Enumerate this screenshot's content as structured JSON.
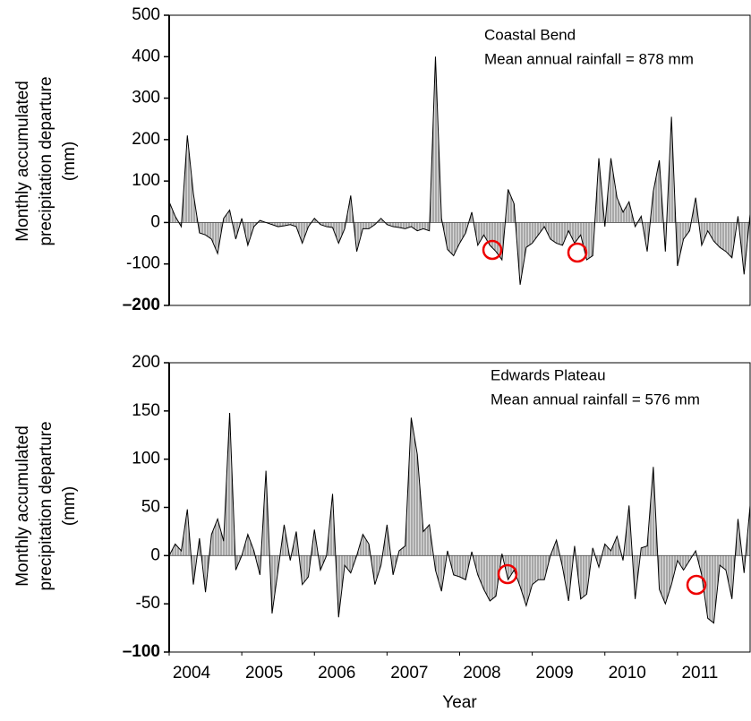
{
  "chart_data": [
    {
      "type": "area",
      "ylabel": [
        "Monthly accumulated",
        "precipitation departure",
        "(mm)"
      ],
      "annotations": [
        "Coastal Bend",
        "Mean annual rainfall = 878 mm"
      ],
      "xlim": [
        2004,
        2012
      ],
      "ylim": [
        -200,
        500
      ],
      "yticks": [
        {
          "value": -200,
          "label": "–200"
        },
        -100,
        0,
        100,
        200,
        300,
        400,
        500
      ],
      "color": "#000000",
      "x": [
        2004.0,
        2004.083,
        2004.167,
        2004.25,
        2004.333,
        2004.417,
        2004.5,
        2004.583,
        2004.667,
        2004.75,
        2004.833,
        2004.917,
        2005.0,
        2005.083,
        2005.167,
        2005.25,
        2005.333,
        2005.417,
        2005.5,
        2005.583,
        2005.667,
        2005.75,
        2005.833,
        2005.917,
        2006.0,
        2006.083,
        2006.167,
        2006.25,
        2006.333,
        2006.417,
        2006.5,
        2006.583,
        2006.667,
        2006.75,
        2006.833,
        2006.917,
        2007.0,
        2007.083,
        2007.167,
        2007.25,
        2007.333,
        2007.417,
        2007.5,
        2007.583,
        2007.667,
        2007.75,
        2007.833,
        2007.917,
        2008.0,
        2008.083,
        2008.167,
        2008.25,
        2008.333,
        2008.417,
        2008.5,
        2008.583,
        2008.667,
        2008.75,
        2008.833,
        2008.917,
        2009.0,
        2009.083,
        2009.167,
        2009.25,
        2009.333,
        2009.417,
        2009.5,
        2009.583,
        2009.667,
        2009.75,
        2009.833,
        2009.917,
        2010.0,
        2010.083,
        2010.167,
        2010.25,
        2010.333,
        2010.417,
        2010.5,
        2010.583,
        2010.667,
        2010.75,
        2010.833,
        2010.917,
        2011.0,
        2011.083,
        2011.167,
        2011.25,
        2011.333,
        2011.417,
        2011.5,
        2011.583,
        2011.667,
        2011.75,
        2011.833,
        2011.917,
        2012.0
      ],
      "values": [
        50,
        15,
        -10,
        210,
        70,
        -25,
        -30,
        -40,
        -75,
        10,
        30,
        -40,
        10,
        -55,
        -10,
        5,
        0,
        -5,
        -10,
        -8,
        -5,
        -10,
        -50,
        -10,
        10,
        -5,
        -10,
        -12,
        -50,
        -15,
        65,
        -70,
        -15,
        -15,
        -5,
        10,
        -5,
        -10,
        -12,
        -15,
        -10,
        -20,
        -15,
        -20,
        400,
        10,
        -65,
        -80,
        -50,
        -25,
        25,
        -55,
        -30,
        -55,
        -70,
        -90,
        80,
        45,
        -150,
        -60,
        -50,
        -30,
        -10,
        -40,
        -50,
        -55,
        -20,
        -50,
        -30,
        -90,
        -80,
        155,
        -10,
        155,
        60,
        25,
        50,
        -10,
        15,
        -70,
        75,
        150,
        -70,
        255,
        -105,
        -40,
        -20,
        60,
        -55,
        -20,
        -45,
        -60,
        -70,
        -85,
        15,
        -125,
        20
      ]
    },
    {
      "type": "area",
      "ylabel": [
        "Monthly accumulated",
        "precipitation departure",
        "(mm)"
      ],
      "annotations": [
        "Edwards Plateau",
        "Mean annual rainfall = 576 mm"
      ],
      "xlabel": "Year",
      "xlim": [
        2004,
        2012
      ],
      "ylim": [
        -100,
        200
      ],
      "yticks": [
        {
          "value": -100,
          "label": "–100"
        },
        -50,
        0,
        50,
        100,
        150,
        200
      ],
      "xticks": [
        2004,
        2005,
        2006,
        2007,
        2008,
        2009,
        2010,
        2011
      ],
      "color": "#000000",
      "x": [
        2004.0,
        2004.083,
        2004.167,
        2004.25,
        2004.333,
        2004.417,
        2004.5,
        2004.583,
        2004.667,
        2004.75,
        2004.833,
        2004.917,
        2005.0,
        2005.083,
        2005.167,
        2005.25,
        2005.333,
        2005.417,
        2005.5,
        2005.583,
        2005.667,
        2005.75,
        2005.833,
        2005.917,
        2006.0,
        2006.083,
        2006.167,
        2006.25,
        2006.333,
        2006.417,
        2006.5,
        2006.583,
        2006.667,
        2006.75,
        2006.833,
        2006.917,
        2007.0,
        2007.083,
        2007.167,
        2007.25,
        2007.333,
        2007.417,
        2007.5,
        2007.583,
        2007.667,
        2007.75,
        2007.833,
        2007.917,
        2008.0,
        2008.083,
        2008.167,
        2008.25,
        2008.333,
        2008.417,
        2008.5,
        2008.583,
        2008.667,
        2008.75,
        2008.833,
        2008.917,
        2009.0,
        2009.083,
        2009.167,
        2009.25,
        2009.333,
        2009.417,
        2009.5,
        2009.583,
        2009.667,
        2009.75,
        2009.833,
        2009.917,
        2010.0,
        2010.083,
        2010.167,
        2010.25,
        2010.333,
        2010.417,
        2010.5,
        2010.583,
        2010.667,
        2010.75,
        2010.833,
        2010.917,
        2011.0,
        2011.083,
        2011.167,
        2011.25,
        2011.333,
        2011.417,
        2011.5,
        2011.583,
        2011.667,
        2011.75,
        2011.833,
        2011.917,
        2012.0
      ],
      "values": [
        0,
        12,
        5,
        48,
        -30,
        18,
        -38,
        22,
        38,
        15,
        148,
        -15,
        0,
        22,
        5,
        -20,
        88,
        -60,
        -15,
        32,
        -5,
        25,
        -30,
        -22,
        27,
        -15,
        0,
        64,
        -64,
        -10,
        -18,
        0,
        22,
        12,
        -30,
        -10,
        32,
        -20,
        5,
        10,
        143,
        105,
        25,
        32,
        -15,
        -37,
        5,
        -20,
        -22,
        -25,
        4,
        -20,
        -35,
        -47,
        -42,
        2,
        -25,
        -15,
        -32,
        -52,
        -30,
        -25,
        -25,
        0,
        16,
        -12,
        -47,
        10,
        -45,
        -40,
        8,
        -12,
        12,
        5,
        20,
        -5,
        52,
        -45,
        8,
        10,
        92,
        -35,
        -50,
        -30,
        -5,
        -15,
        -5,
        5,
        -20,
        -65,
        -70,
        -10,
        -15,
        -45,
        38,
        -18,
        52
      ]
    }
  ]
}
